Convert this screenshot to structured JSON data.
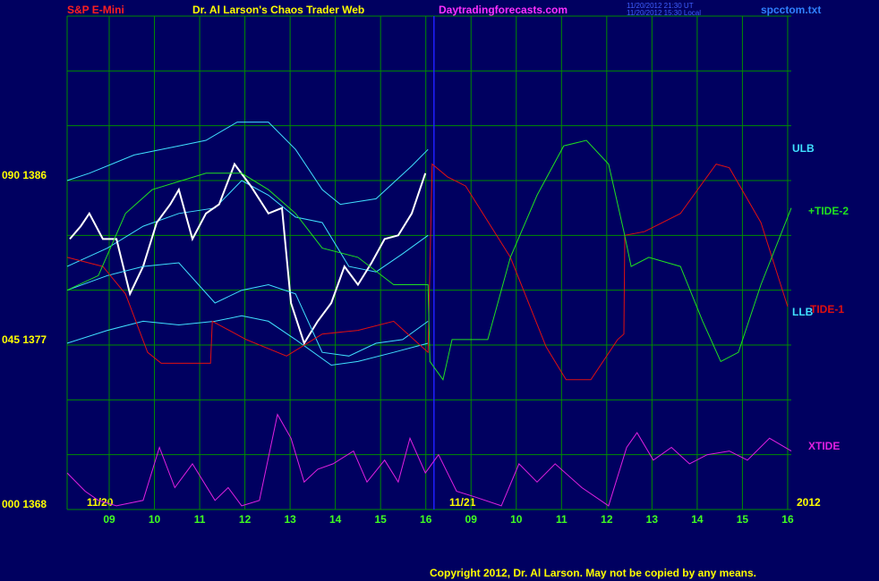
{
  "chart_data": {
    "type": "line",
    "symbol": "S&P E-Mini",
    "title": "Dr. Al Larson's Chaos Trader Web",
    "site": "Daytradingforecasts.com",
    "timestamps": [
      "11/20/2012 21:30 UT",
      "11/20/2012 15:30 Local"
    ],
    "file": "spcctom.txt",
    "day_labels": [
      "11/20",
      "11/21",
      "2012"
    ],
    "copyright": "Copyright 2012, Dr. Al Larson. May not be copied by any means.",
    "xlim": [
      8.07,
      24.08
    ],
    "xticks": [
      {
        "value": 9,
        "label": "09"
      },
      10,
      11,
      12,
      13,
      14,
      15,
      16,
      {
        "value": 17,
        "label": "09"
      },
      {
        "value": 18,
        "label": "10"
      },
      {
        "value": 19,
        "label": "11"
      },
      {
        "value": 20,
        "label": "12"
      },
      {
        "value": 21,
        "label": "13"
      },
      {
        "value": 22,
        "label": "14"
      },
      {
        "value": 23,
        "label": "15"
      },
      {
        "value": 24,
        "label": "16"
      }
    ],
    "ylim": [
      1368,
      1395
    ],
    "yticks": [
      {
        "value": 1386,
        "label": "090  1386"
      },
      {
        "value": 1377,
        "label": "045  1377"
      },
      {
        "value": 1368,
        "label": "000  1368"
      }
    ],
    "ygrid": [
      1371,
      1374,
      1380,
      1383,
      1389,
      1392,
      1395
    ],
    "divider_x": 16.18,
    "grid": true,
    "series": [
      {
        "name": "ULB",
        "color": "#40e0ff",
        "x": [
          8.07,
          8.56,
          9.55,
          10.54,
          11.14,
          11.83,
          12.52,
          13.12,
          13.71,
          14.11,
          14.9,
          15.69,
          16.05
        ],
        "values": [
          1386.0,
          1386.4,
          1387.4,
          1387.9,
          1388.2,
          1389.2,
          1389.2,
          1387.7,
          1385.5,
          1384.7,
          1385.0,
          1386.8,
          1387.7
        ]
      },
      {
        "color": "#40e0ff",
        "x": [
          8.07,
          8.96,
          9.75,
          10.54,
          11.34,
          11.93,
          12.52,
          13.12,
          13.71,
          14.3,
          14.9,
          15.49,
          16.05
        ],
        "values": [
          1381.3,
          1382.3,
          1383.5,
          1384.2,
          1384.5,
          1386.0,
          1385.2,
          1384.0,
          1383.7,
          1381.3,
          1381.0,
          1382.0,
          1383.0
        ]
      },
      {
        "color": "#ffffff",
        "x": [
          8.13,
          8.37,
          8.56,
          8.86,
          9.16,
          9.46,
          9.75,
          10.05,
          10.35,
          10.54,
          10.84,
          11.14,
          11.43,
          11.77,
          12.13,
          12.52,
          12.82,
          13.02,
          13.31,
          13.61,
          13.91,
          14.2,
          14.5,
          14.8,
          15.09,
          15.39,
          15.69,
          15.99
        ],
        "values": [
          1382.8,
          1383.5,
          1384.2,
          1382.8,
          1382.8,
          1379.8,
          1381.3,
          1383.7,
          1384.7,
          1385.5,
          1382.8,
          1384.2,
          1384.7,
          1386.9,
          1385.7,
          1384.2,
          1384.5,
          1379.3,
          1377.1,
          1378.3,
          1379.3,
          1381.3,
          1380.3,
          1381.5,
          1382.8,
          1383.0,
          1384.2,
          1386.4
        ]
      },
      {
        "color": "#40e0ff",
        "x": [
          8.07,
          8.96,
          9.75,
          10.54,
          11.34,
          11.93,
          12.52,
          13.12,
          13.71,
          14.3,
          14.9,
          15.49,
          16.05
        ],
        "values": [
          1380.0,
          1380.8,
          1381.3,
          1381.5,
          1379.3,
          1380.0,
          1380.3,
          1379.8,
          1376.6,
          1376.4,
          1377.1,
          1377.3,
          1378.3
        ]
      },
      {
        "name": "LLB",
        "color": "#40e0ff",
        "x": [
          8.07,
          8.96,
          9.75,
          10.54,
          11.34,
          11.93,
          12.52,
          13.12,
          13.91,
          14.5,
          15.29,
          16.05
        ],
        "values": [
          1377.1,
          1377.8,
          1378.3,
          1378.1,
          1378.3,
          1378.6,
          1378.3,
          1377.3,
          1375.9,
          1376.1,
          1376.6,
          1377.1
        ]
      },
      {
        "name": "TIDE-1",
        "color": "#e01010",
        "x": [
          8.07,
          8.86,
          9.36,
          9.85,
          10.15,
          11.24,
          11.28,
          12.03,
          12.92,
          13.71,
          14.5,
          15.29,
          16.05,
          16.14,
          16.48,
          16.88,
          17.87,
          18.66,
          19.1,
          19.65,
          20.24,
          20.38,
          20.4,
          20.83,
          21.63,
          22.42,
          22.71,
          23.41,
          24.0
        ],
        "values": [
          1381.8,
          1381.3,
          1379.8,
          1376.6,
          1376.0,
          1376.0,
          1378.3,
          1377.3,
          1376.4,
          1377.6,
          1377.8,
          1378.3,
          1376.6,
          1386.9,
          1386.2,
          1385.7,
          1381.8,
          1376.9,
          1375.1,
          1375.1,
          1377.3,
          1377.6,
          1383.0,
          1383.2,
          1384.2,
          1386.9,
          1386.7,
          1383.7,
          1379.1
        ]
      },
      {
        "name": "+TIDE-2",
        "color": "#20e020",
        "x": [
          8.07,
          8.76,
          9.36,
          9.95,
          11.14,
          11.93,
          12.52,
          13.12,
          13.71,
          14.5,
          15.29,
          16.05,
          16.09,
          16.38,
          16.58,
          17.37,
          17.87,
          18.46,
          19.05,
          19.55,
          20.04,
          20.38,
          20.54,
          20.93,
          21.63,
          22.12,
          22.52,
          22.91,
          23.41,
          24.08
        ],
        "values": [
          1380.0,
          1380.8,
          1384.2,
          1385.5,
          1386.4,
          1386.4,
          1385.5,
          1384.2,
          1382.3,
          1381.8,
          1380.3,
          1380.3,
          1376.1,
          1375.1,
          1377.3,
          1377.3,
          1381.8,
          1385.2,
          1387.9,
          1388.2,
          1386.9,
          1383.2,
          1381.3,
          1381.8,
          1381.3,
          1378.3,
          1376.1,
          1376.6,
          1380.3,
          1384.5
        ]
      },
      {
        "name": "XTIDE",
        "color": "#e020e0",
        "x": [
          8.07,
          8.47,
          8.76,
          9.16,
          9.75,
          10.11,
          10.45,
          10.84,
          11.34,
          11.63,
          11.93,
          12.32,
          12.72,
          13.02,
          13.31,
          13.61,
          13.95,
          14.4,
          14.7,
          15.09,
          15.39,
          15.65,
          15.99,
          16.28,
          16.68,
          17.07,
          17.67,
          18.06,
          18.46,
          18.86,
          19.45,
          20.04,
          20.44,
          20.67,
          21.03,
          21.43,
          21.83,
          22.22,
          22.71,
          23.11,
          23.6,
          24.08
        ],
        "values": [
          1370.0,
          1369.0,
          1368.5,
          1368.2,
          1368.5,
          1371.4,
          1369.2,
          1370.5,
          1368.5,
          1369.2,
          1368.2,
          1368.5,
          1373.2,
          1371.9,
          1369.5,
          1370.2,
          1370.5,
          1371.2,
          1369.5,
          1370.7,
          1369.5,
          1371.9,
          1370.0,
          1371.0,
          1369.0,
          1368.7,
          1368.2,
          1370.5,
          1369.5,
          1370.5,
          1369.2,
          1368.2,
          1371.4,
          1372.2,
          1370.7,
          1371.4,
          1370.5,
          1371.0,
          1371.2,
          1370.7,
          1371.9,
          1371.2
        ]
      }
    ]
  }
}
